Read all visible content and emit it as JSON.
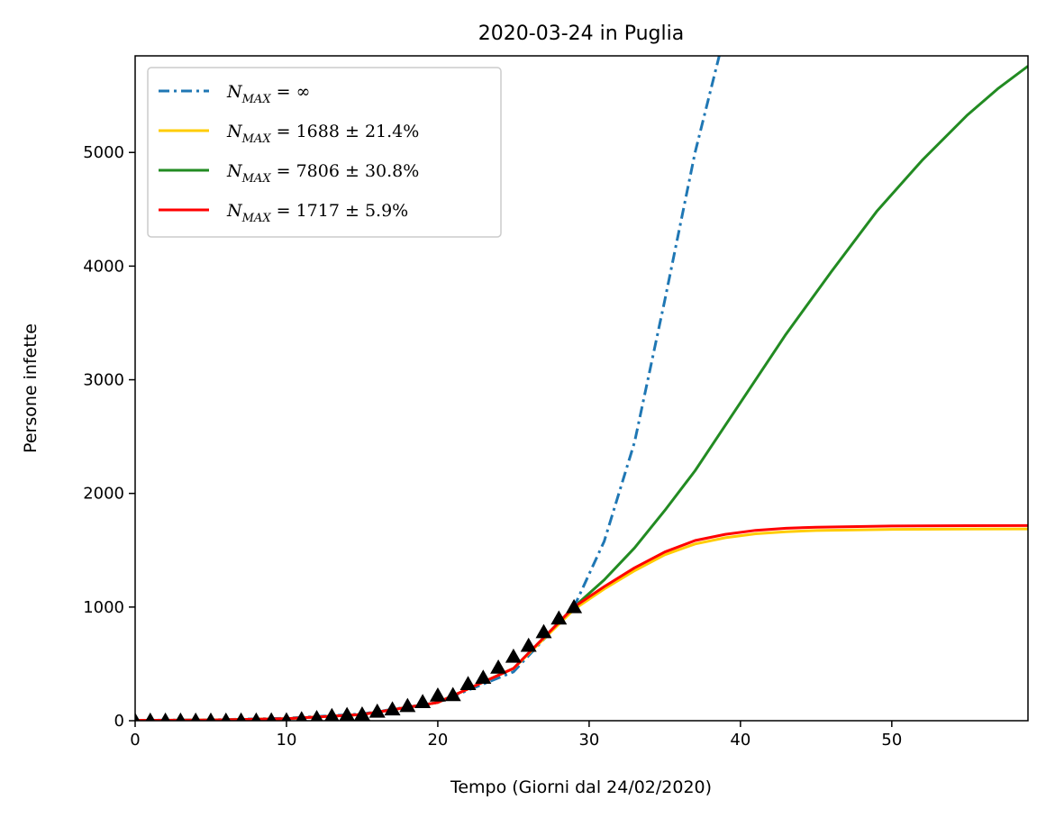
{
  "chart_data": {
    "type": "line",
    "title": "2020-03-24 in Puglia",
    "xlabel": "Tempo (Giorni dal 24/02/2020)",
    "ylabel": "Persone infette",
    "xlim": [
      0,
      59
    ],
    "ylim": [
      0,
      5850
    ],
    "xticks": [
      0,
      10,
      20,
      30,
      40,
      50
    ],
    "yticks": [
      0,
      1000,
      2000,
      3000,
      4000,
      5000
    ],
    "grid": false,
    "legend_position": "upper-left",
    "colors": {
      "exponential": "#1f77b4",
      "logistic_a": "#ffcc00",
      "logistic_b": "#228b22",
      "logistic_c": "#ff0000",
      "data_markers": "#000000"
    },
    "series": [
      {
        "key": "exponential",
        "label_var": "N",
        "label_sub": "MAX",
        "label_rest": " = ∞",
        "style": "dashdot",
        "x": [
          0,
          5,
          10,
          15,
          20,
          25,
          29,
          31,
          33,
          35,
          37,
          38.6
        ],
        "values": [
          3,
          8,
          22,
          60,
          160,
          430,
          1000,
          1580,
          2450,
          3700,
          5000,
          5850
        ]
      },
      {
        "key": "logistic_a",
        "label_var": "N",
        "label_sub": "MAX",
        "label_rest": " = 1688 ± 21.4%",
        "style": "solid",
        "x": [
          0,
          5,
          10,
          15,
          20,
          25,
          29,
          31,
          33,
          35,
          37,
          39,
          41,
          43,
          45,
          50,
          55,
          59
        ],
        "values": [
          3,
          6,
          18,
          55,
          160,
          460,
          980,
          1160,
          1320,
          1460,
          1555,
          1610,
          1645,
          1663,
          1673,
          1684,
          1687,
          1688
        ]
      },
      {
        "key": "logistic_b",
        "label_var": "N",
        "label_sub": "MAX",
        "label_rest": " = 7806 ± 30.8%",
        "style": "solid",
        "x": [
          0,
          5,
          10,
          15,
          20,
          25,
          29,
          31,
          33,
          35,
          37,
          40,
          43,
          46,
          49,
          52,
          55,
          57,
          59
        ],
        "values": [
          3,
          6,
          18,
          55,
          160,
          460,
          1000,
          1240,
          1520,
          1850,
          2200,
          2800,
          3400,
          3950,
          4480,
          4930,
          5330,
          5560,
          5760
        ]
      },
      {
        "key": "logistic_c",
        "label_var": "N",
        "label_sub": "MAX",
        "label_rest": " = 1717 ± 5.9%",
        "style": "solid",
        "x": [
          0,
          5,
          10,
          15,
          20,
          25,
          29,
          31,
          33,
          35,
          37,
          39,
          41,
          43,
          45,
          50,
          55,
          59
        ],
        "values": [
          3,
          6,
          18,
          55,
          160,
          460,
          1000,
          1180,
          1345,
          1485,
          1585,
          1640,
          1675,
          1693,
          1703,
          1713,
          1716,
          1717
        ]
      }
    ],
    "observations": {
      "x": [
        0,
        1,
        2,
        3,
        4,
        5,
        6,
        7,
        8,
        9,
        10,
        11,
        12,
        13,
        14,
        15,
        16,
        17,
        18,
        19,
        20,
        21,
        22,
        23,
        24,
        25,
        26,
        27,
        28,
        29
      ],
      "values": [
        1,
        1,
        1,
        1,
        1,
        1,
        1,
        2,
        2,
        3,
        4,
        14,
        24,
        42,
        51,
        55,
        80,
        100,
        130,
        164,
        222,
        226,
        323,
        379,
        468,
        564,
        660,
        780,
        900,
        1000
      ]
    }
  }
}
